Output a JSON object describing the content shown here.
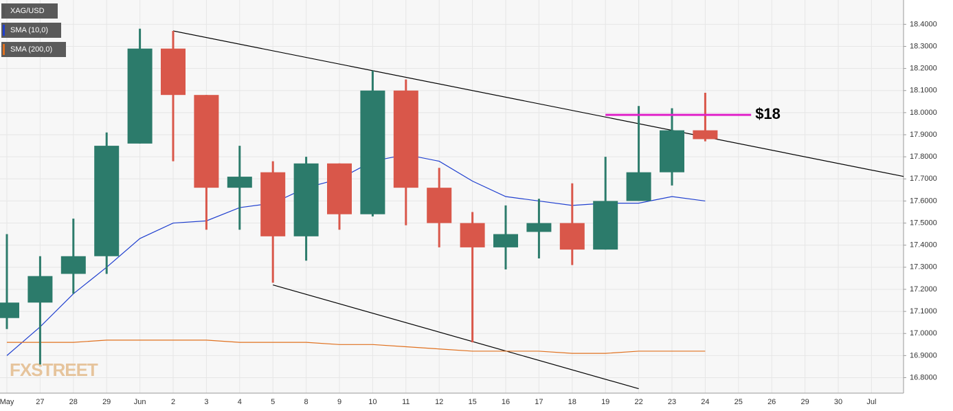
{
  "chart_data": {
    "type": "candlestick",
    "legend": [
      "XAG/USD",
      "SMA (10,0)",
      "SMA (200,0)"
    ],
    "legend_colors": [
      "#555555",
      "#1f3fcf",
      "#e0701e"
    ],
    "watermark": "FXSTREET",
    "categories": [
      "May",
      "27",
      "28",
      "29",
      "Jun",
      "2",
      "3",
      "4",
      "5",
      "8",
      "9",
      "10",
      "11",
      "12",
      "15",
      "16",
      "17",
      "18",
      "19",
      "22",
      "23",
      "24",
      "25",
      "26",
      "29",
      "30",
      "Jul"
    ],
    "open": [
      17.07,
      17.14,
      17.27,
      17.35,
      17.86,
      18.29,
      18.08,
      17.66,
      17.73,
      17.44,
      17.77,
      17.54,
      18.1,
      17.66,
      17.5,
      17.39,
      17.46,
      17.5,
      17.38,
      17.6,
      17.73,
      17.92,
      null,
      null,
      null,
      null,
      null
    ],
    "high": [
      17.45,
      17.35,
      17.52,
      17.91,
      18.38,
      18.37,
      18.08,
      17.85,
      17.78,
      17.8,
      17.77,
      18.19,
      18.15,
      17.75,
      17.55,
      17.58,
      17.61,
      17.68,
      17.8,
      18.03,
      18.02,
      18.09,
      null,
      null,
      null,
      null,
      null
    ],
    "low": [
      17.02,
      16.86,
      17.18,
      17.27,
      17.86,
      17.78,
      17.47,
      17.47,
      17.23,
      17.33,
      17.47,
      17.53,
      17.49,
      17.39,
      16.96,
      17.29,
      17.34,
      17.31,
      17.38,
      17.6,
      17.67,
      17.87,
      null,
      null,
      null,
      null,
      null
    ],
    "close": [
      17.14,
      17.26,
      17.35,
      17.85,
      18.29,
      18.08,
      17.66,
      17.71,
      17.44,
      17.77,
      17.54,
      18.1,
      17.66,
      17.5,
      17.39,
      17.45,
      17.5,
      17.38,
      17.6,
      17.73,
      17.92,
      17.88,
      null,
      null,
      null,
      null,
      null
    ],
    "up_color": "#2c7b6b",
    "down_color": "#d9574a",
    "series": [
      {
        "name": "SMA (10,0)",
        "color": "#1f3fcf",
        "values": [
          16.9,
          17.03,
          17.18,
          17.3,
          17.43,
          17.5,
          17.51,
          17.57,
          17.59,
          17.66,
          17.7,
          17.78,
          17.81,
          17.78,
          17.69,
          17.62,
          17.6,
          17.58,
          17.59,
          17.59,
          17.62,
          17.6,
          null,
          null,
          null,
          null,
          null
        ]
      },
      {
        "name": "SMA (200,0)",
        "color": "#e0701e",
        "values": [
          16.96,
          16.96,
          16.96,
          16.97,
          16.97,
          16.97,
          16.97,
          16.96,
          16.96,
          16.96,
          16.95,
          16.95,
          16.94,
          16.93,
          16.92,
          16.92,
          16.92,
          16.91,
          16.91,
          16.92,
          16.92,
          16.92,
          null,
          null,
          null,
          null,
          null
        ]
      }
    ],
    "trendlines": [
      {
        "from": [
          5,
          18.37
        ],
        "to": [
          26,
          17.74
        ],
        "extend": true,
        "color": "#000000"
      },
      {
        "from": [
          8,
          17.22
        ],
        "to": [
          19,
          16.75
        ],
        "extend": false,
        "color": "#000000"
      }
    ],
    "annotations": [
      {
        "text": "$18",
        "value": 17.99,
        "from": 18,
        "to": 23,
        "color": "#e020c8"
      }
    ],
    "ylim": [
      16.73,
      18.51
    ],
    "yticks": [
      {
        "value": 16.8,
        "label": "16.8000"
      },
      {
        "value": 16.9,
        "label": "16.9000"
      },
      {
        "value": 17.0,
        "label": "17.0000"
      },
      {
        "value": 17.1,
        "label": "17.1000"
      },
      {
        "value": 17.2,
        "label": "17.2000"
      },
      {
        "value": 17.3,
        "label": "17.3000"
      },
      {
        "value": 17.4,
        "label": "17.4000"
      },
      {
        "value": 17.5,
        "label": "17.5000"
      },
      {
        "value": 17.6,
        "label": "17.6000"
      },
      {
        "value": 17.7,
        "label": "17.7000"
      },
      {
        "value": 17.8,
        "label": "17.8000"
      },
      {
        "value": 17.9,
        "label": "17.9000"
      },
      {
        "value": 18.0,
        "label": "18.0000"
      },
      {
        "value": 18.1,
        "label": "18.1000"
      },
      {
        "value": 18.2,
        "label": "18.2000"
      },
      {
        "value": 18.3,
        "label": "18.3000"
      },
      {
        "value": 18.4,
        "label": "18.4000"
      }
    ],
    "grid": true
  }
}
